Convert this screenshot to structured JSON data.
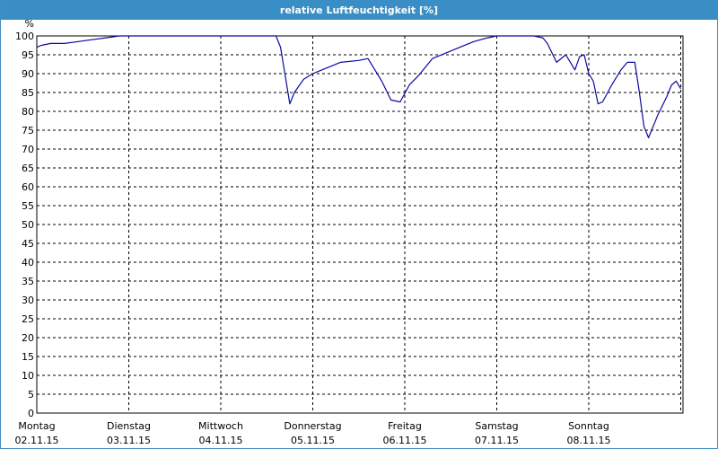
{
  "window": {
    "title": "relative Luftfeuchtigkeit [%]"
  },
  "colors": {
    "titlebar": "#3a8ec6",
    "series": "#0a0aa0",
    "grid": "#000000"
  },
  "chart_data": {
    "type": "line",
    "title": "relative Luftfeuchtigkeit [%]",
    "ylabel": "%",
    "xlabel": "",
    "ylim": [
      0,
      100
    ],
    "yticks": [
      0,
      5,
      10,
      15,
      20,
      25,
      30,
      35,
      40,
      45,
      50,
      55,
      60,
      65,
      70,
      75,
      80,
      85,
      90,
      95,
      100
    ],
    "xlim": [
      0,
      7
    ],
    "grid": true,
    "legend": "none",
    "x_ticks": [
      {
        "day": "Montag",
        "date": "02.11.15"
      },
      {
        "day": "Dienstag",
        "date": "03.11.15"
      },
      {
        "day": "Mittwoch",
        "date": "04.11.15"
      },
      {
        "day": "Donnerstag",
        "date": "05.11.15"
      },
      {
        "day": "Freitag",
        "date": "06.11.15"
      },
      {
        "day": "Samstag",
        "date": "07.11.15"
      },
      {
        "day": "Sonntag",
        "date": "08.11.15"
      }
    ],
    "series": [
      {
        "x": [
          0,
          0.05,
          0.15,
          0.3,
          0.45,
          0.6,
          0.75,
          0.9,
          1.0,
          1.5,
          2.0,
          2.5,
          2.6,
          2.65,
          2.75,
          2.8,
          2.9,
          3.0,
          3.1,
          3.3,
          3.5,
          3.6,
          3.75,
          3.85,
          3.95,
          4.05,
          4.15,
          4.3,
          4.45,
          4.6,
          4.75,
          4.9,
          5.0,
          5.2,
          5.4,
          5.5,
          5.55,
          5.65,
          5.75,
          5.85,
          5.9,
          5.95,
          6.0,
          6.05,
          6.1,
          6.15,
          6.25,
          6.35,
          6.42,
          6.5,
          6.55,
          6.6,
          6.65,
          6.75,
          6.85,
          6.9,
          6.95,
          7.0
        ],
        "y": [
          97,
          97.5,
          98,
          98,
          98.5,
          99,
          99.5,
          100,
          100,
          100,
          100,
          100,
          100,
          97,
          82,
          85,
          88.5,
          90,
          91,
          93,
          93.5,
          94,
          88,
          83,
          82.5,
          87,
          89.5,
          94,
          95.5,
          97,
          98.5,
          99.5,
          100,
          100,
          100,
          99.5,
          98,
          93,
          95,
          91,
          94.5,
          95,
          90,
          88,
          82,
          82.5,
          87,
          91,
          93,
          93,
          85,
          76,
          73,
          79,
          84,
          87,
          88,
          86
        ]
      }
    ]
  }
}
